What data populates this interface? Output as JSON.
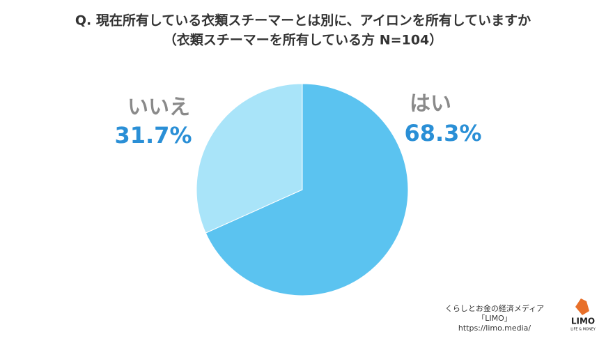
{
  "chart_data": {
    "type": "pie",
    "title": "Q. 現在所有している衣類スチーマーとは別に、アイロンを所有していますか",
    "subtitle": "（衣類スチーマーを所有している方 N=104）",
    "categories": [
      "はい",
      "いいえ"
    ],
    "values": [
      68.3,
      31.7
    ],
    "value_labels": [
      "68.3%",
      "31.7%"
    ],
    "colors": [
      "#5bc3f0",
      "#a9e4f9"
    ]
  },
  "branding": {
    "tagline": "くらしとお金の経済メディア",
    "name": "「LIMO」",
    "url": "https://limo.media/",
    "logo": "LIMO",
    "logo_sub": "LIFE & MONEY"
  }
}
